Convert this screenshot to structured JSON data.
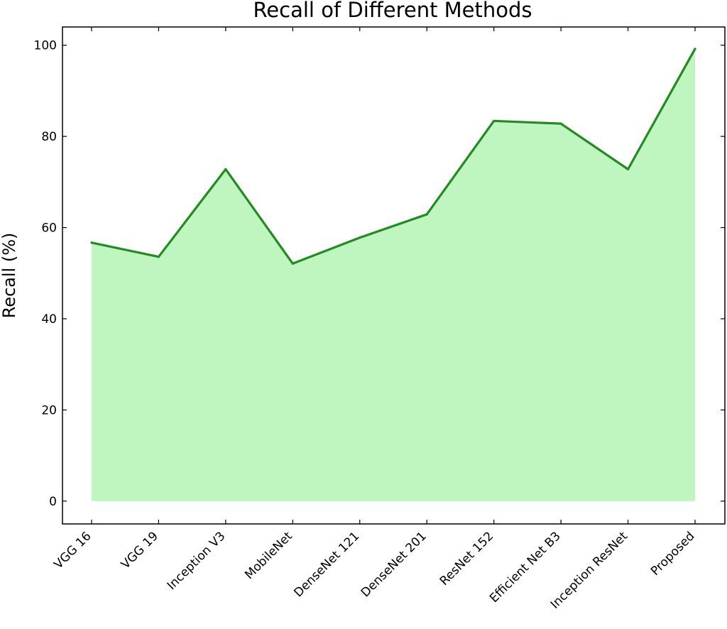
{
  "chart_data": {
    "type": "area",
    "title": "Recall of Different Methods",
    "xlabel": "",
    "ylabel": "Recall (%)",
    "categories": [
      "VGG 16",
      "VGG 19",
      "Inception V3",
      "MobileNet",
      "DenseNet 121",
      "DenseNet 201",
      "ResNet 152",
      "Efficient Net B3",
      "Inception ResNet",
      "Proposed"
    ],
    "values": [
      56.7,
      53.6,
      72.8,
      52.1,
      57.8,
      62.9,
      83.4,
      82.8,
      72.8,
      99.2
    ],
    "ylim": [
      -5,
      104
    ],
    "yticks": [
      0,
      20,
      40,
      60,
      80,
      100
    ],
    "grid": false,
    "line_color": "#228b22",
    "fill_color": "#90ee90"
  }
}
